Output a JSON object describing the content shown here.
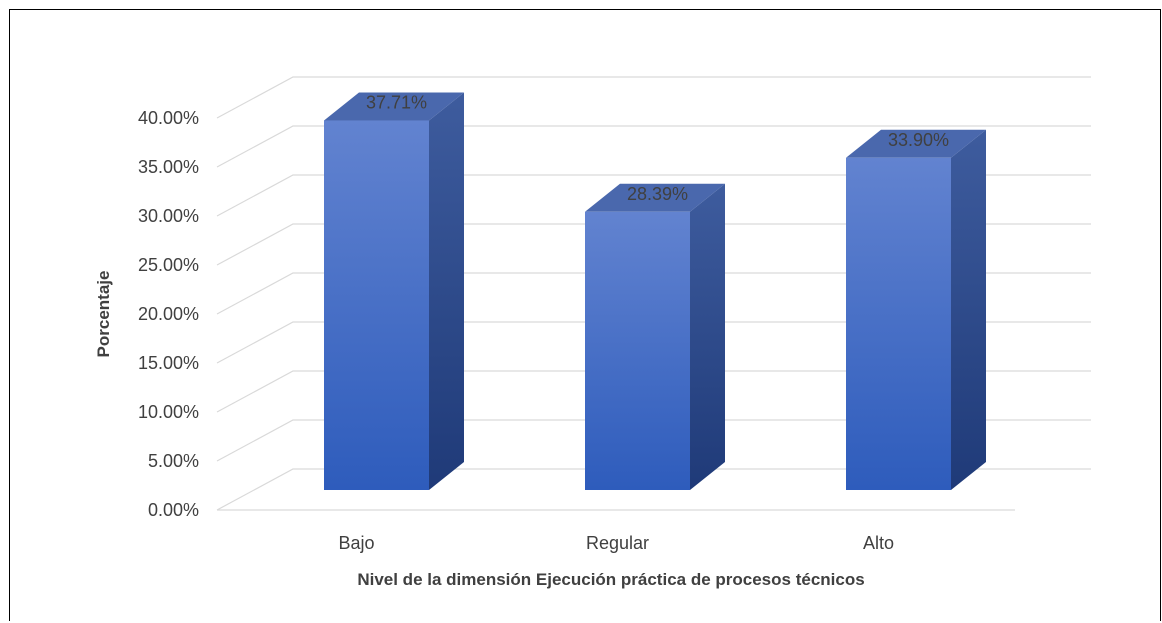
{
  "chart_data": {
    "type": "bar",
    "categories": [
      "Bajo",
      "Regular",
      "Alto"
    ],
    "values": [
      37.71,
      28.39,
      33.9
    ],
    "data_labels": [
      "37.71%",
      "28.39%",
      "33.90%"
    ],
    "title": "",
    "xlabel": "Nivel de la dimensión Ejecución práctica de procesos técnicos",
    "ylabel": "Porcentaje",
    "ylim": [
      0,
      40
    ],
    "yticks": [
      0,
      5,
      10,
      15,
      20,
      25,
      30,
      35,
      40
    ],
    "ytick_labels": [
      "0.00%",
      "5.00%",
      "10.00%",
      "15.00%",
      "20.00%",
      "25.00%",
      "30.00%",
      "35.00%",
      "40.00%"
    ],
    "grid": true,
    "legend": "none",
    "style": "3d-column",
    "colors": {
      "front_top": "#6283d0",
      "front_bottom": "#2e5cbc",
      "side_top": "#3e5c9e",
      "side_bottom": "#1f3a78",
      "top_face": "#4a68ad",
      "grid": "#d9d9d9"
    }
  }
}
